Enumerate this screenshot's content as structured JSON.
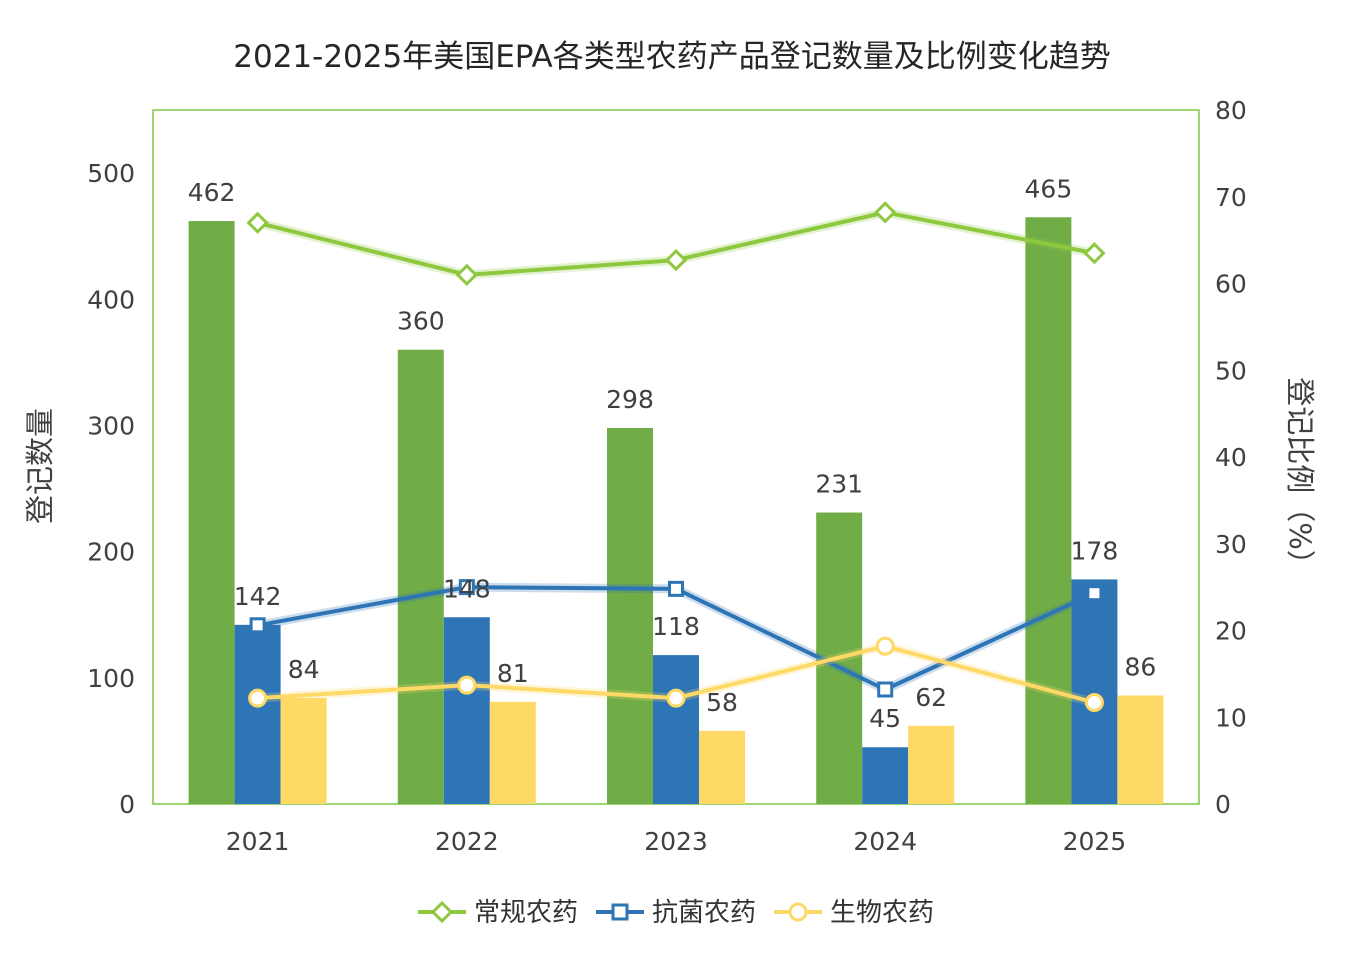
{
  "chart_data": {
    "type": "bar",
    "title": "2021-2025年美国EPA各类型农药产品登记数量及比例变化趋势",
    "categories": [
      "2021",
      "2022",
      "2023",
      "2024",
      "2025"
    ],
    "series": [
      {
        "name": "常规农药",
        "values": [
          462,
          360,
          298,
          231,
          465
        ],
        "color": "#70AD47"
      },
      {
        "name": "抗菌农药",
        "values": [
          142,
          148,
          118,
          45,
          178
        ],
        "color": "#2E75B6"
      },
      {
        "name": "生物农药",
        "values": [
          84,
          81,
          58,
          62,
          86
        ],
        "color": "#FFD966"
      }
    ],
    "line_series": [
      {
        "name": "常规农药",
        "values": [
          67,
          61,
          62.7,
          68.2,
          63.5
        ],
        "color": "#8DC83F",
        "marker": "diamond"
      },
      {
        "name": "抗菌农药",
        "values": [
          20.6,
          25,
          24.8,
          13.2,
          24.3
        ],
        "color": "#2E75B6",
        "marker": "square"
      },
      {
        "name": "生物农药",
        "values": [
          12.2,
          13.7,
          12.2,
          18.2,
          11.7
        ],
        "color": "#FFD966",
        "marker": "circle"
      }
    ],
    "ylabel": "登记数量",
    "y2label": "登记比例（%）",
    "ylim": [
      0,
      550
    ],
    "y_ticks": [
      0,
      100,
      200,
      300,
      400,
      500
    ],
    "y2lim": [
      0,
      80
    ],
    "y2_ticks": [
      0,
      10,
      20,
      30,
      40,
      50,
      60,
      70,
      80
    ],
    "legend": "bottom",
    "grid": false
  }
}
